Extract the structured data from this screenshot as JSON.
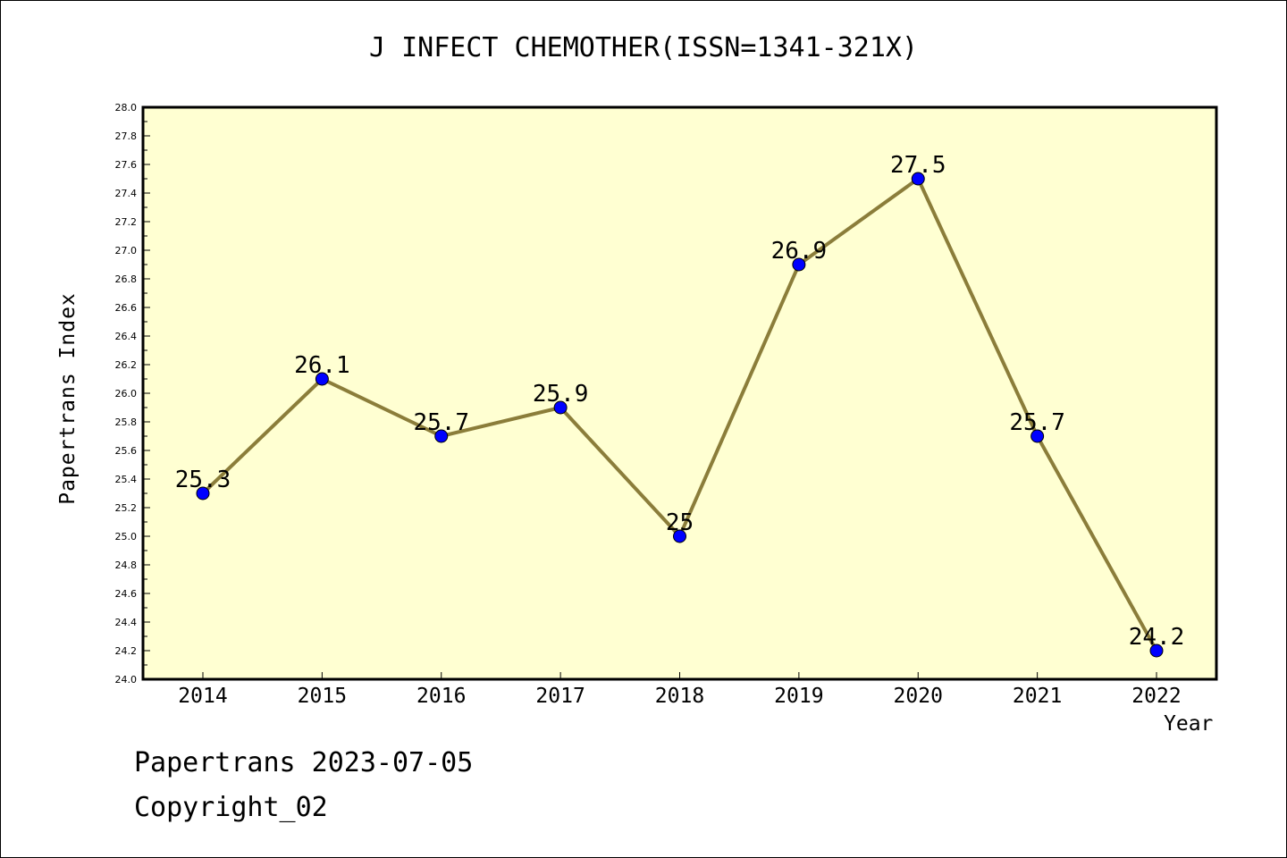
{
  "chart_data": {
    "type": "line",
    "title": "J INFECT CHEMOTHER(ISSN=1341-321X)",
    "xlabel": "Year",
    "ylabel": "Papertrans Index",
    "categories": [
      "2014",
      "2015",
      "2016",
      "2017",
      "2018",
      "2019",
      "2020",
      "2021",
      "2022"
    ],
    "series": [
      {
        "values": [
          25.3,
          26.1,
          25.7,
          25.9,
          25.0,
          26.9,
          27.5,
          25.7,
          24.2
        ]
      }
    ],
    "data_labels": [
      "25.3",
      "26.1",
      "25.7",
      "25.9",
      "25",
      "26.9",
      "27.5",
      "25.7",
      "24.2"
    ],
    "ylim": [
      24.0,
      28.0
    ],
    "yticks": [
      "24.0",
      "24.2",
      "24.4",
      "24.6",
      "24.8",
      "25.0",
      "25.2",
      "25.4",
      "25.6",
      "25.8",
      "26.0",
      "26.2",
      "26.4",
      "26.6",
      "26.8",
      "27.0",
      "27.2",
      "27.4",
      "27.6",
      "27.8",
      "28.0"
    ],
    "grid": false,
    "colors": {
      "background": "#ffffd2",
      "line": "#8b7d3a",
      "marker": "#0000ff"
    }
  },
  "footer": {
    "line1": "Papertrans 2023-07-05",
    "line2": "Copyright_02"
  }
}
